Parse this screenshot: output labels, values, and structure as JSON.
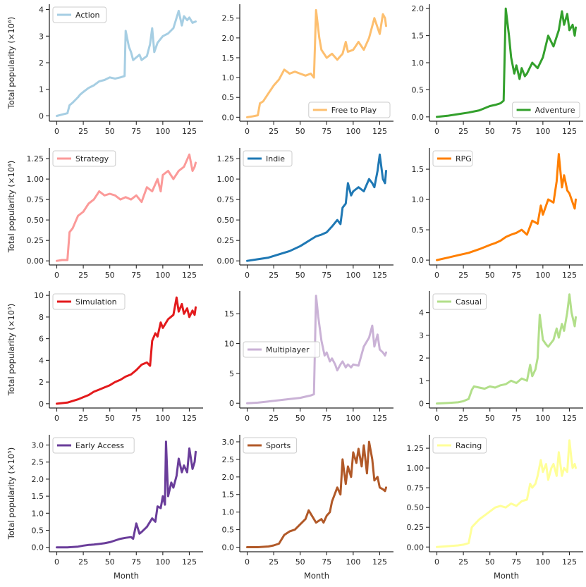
{
  "chart_data": [
    {
      "type": "line",
      "title": "",
      "legend_label": "Action",
      "legend_loc": "top-left",
      "color": "#a6cee3",
      "xlabel": "",
      "ylabel": "Total popularity (×10⁶)",
      "ylim": [
        -0.2,
        4.2
      ],
      "xlim": [
        -7,
        138
      ],
      "yticks": [
        0,
        1,
        2,
        3,
        4
      ],
      "xticks": [
        0,
        25,
        50,
        75,
        100,
        125
      ],
      "x": [
        0,
        5,
        10,
        12,
        15,
        20,
        22,
        25,
        30,
        35,
        40,
        45,
        50,
        55,
        60,
        64,
        65,
        68,
        70,
        72,
        75,
        78,
        80,
        85,
        88,
        90,
        92,
        95,
        100,
        105,
        110,
        115,
        118,
        120,
        123,
        125,
        128,
        131
      ],
      "values": [
        0,
        0.05,
        0.1,
        0.4,
        0.5,
        0.7,
        0.8,
        0.9,
        1.05,
        1.15,
        1.3,
        1.35,
        1.45,
        1.4,
        1.45,
        1.5,
        3.2,
        2.6,
        2.4,
        2.1,
        2.2,
        2.3,
        2.1,
        2.25,
        2.7,
        3.3,
        2.4,
        2.75,
        3.0,
        3.1,
        3.3,
        3.95,
        3.4,
        3.75,
        3.6,
        3.7,
        3.5,
        3.55
      ]
    },
    {
      "type": "line",
      "title": "",
      "legend_label": "Free to Play",
      "legend_loc": "bottom-right",
      "color": "#fdbf6f",
      "xlabel": "",
      "ylabel": "",
      "ylim": [
        -0.1,
        2.85
      ],
      "xlim": [
        -7,
        138
      ],
      "yticks": [
        0.0,
        0.5,
        1.0,
        1.5,
        2.0,
        2.5
      ],
      "xticks": [
        0,
        25,
        50,
        75,
        100,
        125
      ],
      "x": [
        0,
        5,
        10,
        12,
        15,
        20,
        25,
        30,
        35,
        40,
        45,
        50,
        55,
        60,
        63,
        65,
        68,
        70,
        75,
        80,
        85,
        90,
        93,
        95,
        100,
        105,
        110,
        115,
        120,
        125,
        128,
        130,
        131
      ],
      "values": [
        0,
        0.02,
        0.05,
        0.35,
        0.4,
        0.6,
        0.8,
        0.95,
        1.2,
        1.1,
        1.15,
        1.1,
        1.05,
        1.1,
        1.0,
        2.7,
        2.0,
        1.7,
        1.5,
        1.6,
        1.45,
        1.6,
        1.9,
        1.65,
        1.7,
        1.9,
        1.7,
        2.0,
        2.5,
        2.1,
        2.6,
        2.5,
        2.3
      ]
    },
    {
      "type": "line",
      "title": "",
      "legend_label": "Adventure",
      "legend_loc": "bottom-right",
      "color": "#33a02c",
      "xlabel": "",
      "ylabel": "",
      "ylim": [
        -0.08,
        2.08
      ],
      "xlim": [
        -7,
        138
      ],
      "yticks": [
        0.0,
        0.5,
        1.0,
        1.5,
        2.0
      ],
      "xticks": [
        0,
        25,
        50,
        75,
        100,
        125
      ],
      "x": [
        0,
        10,
        20,
        30,
        40,
        50,
        55,
        60,
        63,
        65,
        68,
        70,
        73,
        75,
        78,
        80,
        83,
        85,
        90,
        95,
        100,
        105,
        110,
        115,
        118,
        120,
        123,
        125,
        128,
        130,
        131
      ],
      "values": [
        0,
        0.02,
        0.05,
        0.08,
        0.12,
        0.2,
        0.22,
        0.25,
        0.3,
        2.0,
        1.5,
        1.1,
        0.8,
        0.95,
        0.7,
        0.9,
        0.75,
        0.8,
        1.0,
        0.9,
        1.1,
        1.5,
        1.3,
        1.6,
        1.95,
        1.7,
        1.9,
        1.6,
        1.7,
        1.5,
        1.65
      ]
    },
    {
      "type": "line",
      "title": "",
      "legend_label": "Strategy",
      "legend_loc": "top-left",
      "color": "#fb9a99",
      "xlabel": "",
      "ylabel": "Total popularity (×10⁶)",
      "ylim": [
        -0.05,
        1.38
      ],
      "xlim": [
        -7,
        138
      ],
      "yticks": [
        0.0,
        0.25,
        0.5,
        0.75,
        1.0,
        1.25
      ],
      "xticks": [
        0,
        25,
        50,
        75,
        100,
        125
      ],
      "x": [
        0,
        5,
        10,
        12,
        15,
        20,
        25,
        30,
        35,
        40,
        45,
        50,
        55,
        60,
        65,
        70,
        75,
        80,
        85,
        90,
        95,
        98,
        100,
        105,
        110,
        115,
        120,
        125,
        128,
        130,
        131
      ],
      "values": [
        0,
        0.01,
        0.01,
        0.35,
        0.4,
        0.55,
        0.6,
        0.7,
        0.75,
        0.85,
        0.8,
        0.82,
        0.8,
        0.75,
        0.78,
        0.75,
        0.8,
        0.72,
        0.9,
        0.85,
        1.0,
        0.85,
        1.05,
        1.1,
        1.0,
        1.1,
        1.15,
        1.3,
        1.1,
        1.15,
        1.2
      ]
    },
    {
      "type": "line",
      "title": "",
      "legend_label": "Indie",
      "legend_loc": "top-left",
      "color": "#1f78b4",
      "xlabel": "",
      "ylabel": "",
      "ylim": [
        -0.05,
        1.38
      ],
      "xlim": [
        -7,
        138
      ],
      "yticks": [
        0.0,
        0.25,
        0.5,
        0.75,
        1.0,
        1.25
      ],
      "xticks": [
        0,
        25,
        50,
        75,
        100,
        125
      ],
      "x": [
        0,
        10,
        20,
        30,
        40,
        50,
        55,
        60,
        65,
        70,
        75,
        80,
        85,
        88,
        90,
        93,
        95,
        98,
        100,
        105,
        110,
        115,
        118,
        120,
        123,
        125,
        128,
        130,
        131
      ],
      "values": [
        0,
        0.02,
        0.04,
        0.08,
        0.12,
        0.18,
        0.22,
        0.26,
        0.3,
        0.32,
        0.35,
        0.42,
        0.5,
        0.45,
        0.65,
        0.7,
        0.95,
        0.8,
        0.85,
        0.9,
        0.85,
        1.0,
        0.95,
        0.9,
        1.1,
        1.3,
        1.0,
        0.95,
        1.1
      ]
    },
    {
      "type": "line",
      "title": "",
      "legend_label": "RPG",
      "legend_loc": "top-left",
      "color": "#ff7f00",
      "xlabel": "",
      "ylabel": "",
      "ylim": [
        -0.08,
        1.85
      ],
      "xlim": [
        -7,
        138
      ],
      "yticks": [
        0.0,
        0.5,
        1.0,
        1.5
      ],
      "xticks": [
        0,
        25,
        50,
        75,
        100,
        125
      ],
      "x": [
        0,
        10,
        20,
        30,
        40,
        50,
        55,
        60,
        65,
        70,
        75,
        80,
        85,
        90,
        95,
        98,
        100,
        105,
        110,
        113,
        115,
        118,
        120,
        123,
        125,
        128,
        130,
        131
      ],
      "values": [
        0,
        0.04,
        0.08,
        0.12,
        0.18,
        0.25,
        0.28,
        0.32,
        0.38,
        0.42,
        0.45,
        0.5,
        0.42,
        0.65,
        0.6,
        0.9,
        0.75,
        1.0,
        0.95,
        1.3,
        1.75,
        1.2,
        1.4,
        1.15,
        1.1,
        0.95,
        0.85,
        1.0
      ]
    },
    {
      "type": "line",
      "title": "",
      "legend_label": "Simulation",
      "legend_loc": "top-left",
      "color": "#e31a1c",
      "xlabel": "",
      "ylabel": "Total popularity (×10⁵)",
      "ylim": [
        -0.4,
        10.4
      ],
      "xlim": [
        -7,
        138
      ],
      "yticks": [
        0,
        2,
        4,
        6,
        8,
        10
      ],
      "xticks": [
        0,
        25,
        50,
        75,
        100,
        125
      ],
      "x": [
        0,
        10,
        20,
        25,
        30,
        35,
        40,
        45,
        50,
        55,
        60,
        65,
        70,
        75,
        80,
        85,
        88,
        90,
        93,
        95,
        98,
        100,
        105,
        110,
        113,
        115,
        118,
        120,
        123,
        125,
        128,
        130,
        131
      ],
      "values": [
        0,
        0.1,
        0.4,
        0.6,
        0.8,
        1.1,
        1.3,
        1.5,
        1.7,
        2.0,
        2.2,
        2.5,
        2.7,
        3.1,
        3.6,
        3.8,
        3.5,
        5.8,
        6.5,
        6.2,
        7.5,
        7.0,
        7.8,
        8.2,
        9.8,
        8.5,
        9.2,
        8.3,
        8.8,
        8.0,
        8.6,
        8.2,
        8.9
      ]
    },
    {
      "type": "line",
      "title": "",
      "legend_label": "Multiplayer",
      "legend_loc": "center-left",
      "color": "#cab2d6",
      "xlabel": "",
      "ylabel": "",
      "ylim": [
        -0.8,
        18.8
      ],
      "xlim": [
        -7,
        138
      ],
      "yticks": [
        0,
        5,
        10,
        15
      ],
      "xticks": [
        0,
        25,
        50,
        75,
        100,
        125
      ],
      "x": [
        0,
        10,
        20,
        30,
        40,
        50,
        55,
        60,
        63,
        65,
        67,
        70,
        73,
        75,
        78,
        80,
        83,
        85,
        88,
        90,
        93,
        95,
        98,
        100,
        105,
        110,
        115,
        118,
        120,
        123,
        125,
        128,
        130,
        131
      ],
      "values": [
        0,
        0.1,
        0.3,
        0.5,
        0.7,
        0.9,
        1.1,
        1.3,
        1.5,
        18.0,
        14.5,
        10.5,
        8.0,
        8.5,
        7.0,
        7.5,
        6.5,
        5.5,
        6.5,
        7.0,
        6.0,
        6.5,
        6.0,
        6.5,
        6.3,
        9.5,
        11.0,
        13.0,
        9.5,
        11.5,
        9.0,
        8.5,
        8.0,
        8.5
      ]
    },
    {
      "type": "line",
      "title": "",
      "legend_label": "Casual",
      "legend_loc": "top-left",
      "color": "#b2df8a",
      "xlabel": "",
      "ylabel": "",
      "ylim": [
        -0.2,
        4.95
      ],
      "xlim": [
        -7,
        138
      ],
      "yticks": [
        0,
        1,
        2,
        3,
        4
      ],
      "xticks": [
        0,
        25,
        50,
        75,
        100,
        125
      ],
      "x": [
        0,
        10,
        20,
        25,
        30,
        33,
        35,
        40,
        45,
        50,
        55,
        60,
        65,
        70,
        75,
        80,
        85,
        88,
        90,
        93,
        95,
        97,
        100,
        103,
        105,
        110,
        113,
        115,
        118,
        120,
        123,
        125,
        127,
        130,
        131
      ],
      "values": [
        0,
        0.02,
        0.05,
        0.1,
        0.2,
        0.6,
        0.75,
        0.7,
        0.65,
        0.75,
        0.7,
        0.8,
        0.85,
        1.0,
        0.9,
        1.1,
        1.0,
        1.7,
        1.2,
        1.5,
        2.0,
        3.9,
        2.8,
        2.6,
        2.5,
        2.8,
        3.3,
        2.9,
        3.5,
        3.2,
        4.0,
        4.8,
        4.0,
        3.4,
        3.8
      ]
    },
    {
      "type": "line",
      "title": "",
      "legend_label": "Early Access",
      "legend_loc": "top-left",
      "color": "#6a3d9a",
      "xlabel": "",
      "ylabel": "Total popularity (×10⁵)",
      "ylim": [
        -0.13,
        3.3
      ],
      "xlim": [
        -7,
        138
      ],
      "yticks": [
        0.0,
        0.5,
        1.0,
        1.5,
        2.0,
        2.5,
        3.0
      ],
      "xticks": [
        0,
        25,
        50,
        75,
        100,
        125
      ],
      "x": [
        0,
        10,
        20,
        25,
        30,
        35,
        40,
        45,
        50,
        55,
        60,
        65,
        70,
        72,
        75,
        78,
        80,
        85,
        90,
        93,
        95,
        98,
        100,
        102,
        103,
        105,
        108,
        110,
        113,
        115,
        118,
        120,
        123,
        125,
        128,
        130,
        131
      ],
      "values": [
        0,
        0,
        0.02,
        0.05,
        0.07,
        0.08,
        0.1,
        0.12,
        0.15,
        0.2,
        0.25,
        0.28,
        0.3,
        0.25,
        0.7,
        0.4,
        0.45,
        0.6,
        0.85,
        0.75,
        1.2,
        1.15,
        1.5,
        1.25,
        3.1,
        1.5,
        1.9,
        1.75,
        2.1,
        2.6,
        2.2,
        2.4,
        2.2,
        2.9,
        2.3,
        2.5,
        2.8
      ]
    },
    {
      "type": "line",
      "title": "",
      "legend_label": "Sports",
      "legend_loc": "top-left",
      "color": "#b15928",
      "xlabel": "",
      "ylabel": "",
      "ylim": [
        -0.13,
        3.2
      ],
      "xlim": [
        -7,
        138
      ],
      "yticks": [
        0.0,
        0.5,
        1.0,
        1.5,
        2.0,
        2.5,
        3.0
      ],
      "xticks": [
        0,
        25,
        50,
        75,
        100,
        125
      ],
      "x": [
        0,
        10,
        20,
        25,
        30,
        35,
        40,
        45,
        50,
        55,
        58,
        60,
        65,
        70,
        72,
        75,
        78,
        80,
        85,
        88,
        90,
        93,
        95,
        98,
        100,
        103,
        105,
        108,
        110,
        113,
        115,
        118,
        120,
        123,
        125,
        128,
        130,
        131
      ],
      "values": [
        0,
        0,
        0.02,
        0.05,
        0.1,
        0.35,
        0.45,
        0.5,
        0.65,
        0.8,
        1.05,
        0.95,
        0.7,
        0.8,
        0.7,
        0.9,
        1.0,
        1.3,
        1.7,
        1.5,
        2.5,
        1.8,
        2.3,
        2.0,
        2.7,
        2.4,
        2.8,
        2.3,
        2.9,
        2.1,
        3.0,
        2.5,
        1.9,
        2.0,
        1.7,
        1.65,
        1.6,
        1.7
      ]
    },
    {
      "type": "line",
      "title": "",
      "legend_label": "Racing",
      "legend_loc": "top-left",
      "color": "#ffff99",
      "xlabel": "",
      "ylabel": "",
      "ylim": [
        -0.06,
        1.42
      ],
      "xlim": [
        -7,
        138
      ],
      "yticks": [
        0.0,
        0.25,
        0.5,
        0.75,
        1.0,
        1.25
      ],
      "xticks": [
        0,
        25,
        50,
        75,
        100,
        125
      ],
      "x": [
        0,
        10,
        20,
        25,
        30,
        33,
        35,
        40,
        45,
        50,
        55,
        60,
        65,
        70,
        75,
        80,
        85,
        88,
        90,
        93,
        95,
        98,
        100,
        103,
        105,
        108,
        110,
        113,
        115,
        118,
        120,
        123,
        125,
        127,
        128,
        130,
        131
      ],
      "values": [
        0,
        0.01,
        0.02,
        0.03,
        0.05,
        0.25,
        0.28,
        0.35,
        0.4,
        0.45,
        0.5,
        0.52,
        0.5,
        0.55,
        0.52,
        0.58,
        0.6,
        0.8,
        0.75,
        0.8,
        0.9,
        1.1,
        0.95,
        1.05,
        0.85,
        1.0,
        1.05,
        0.9,
        1.2,
        0.9,
        1.0,
        0.95,
        1.35,
        1.1,
        1.0,
        1.05,
        1.0
      ]
    }
  ],
  "x_axis_label": "Month"
}
